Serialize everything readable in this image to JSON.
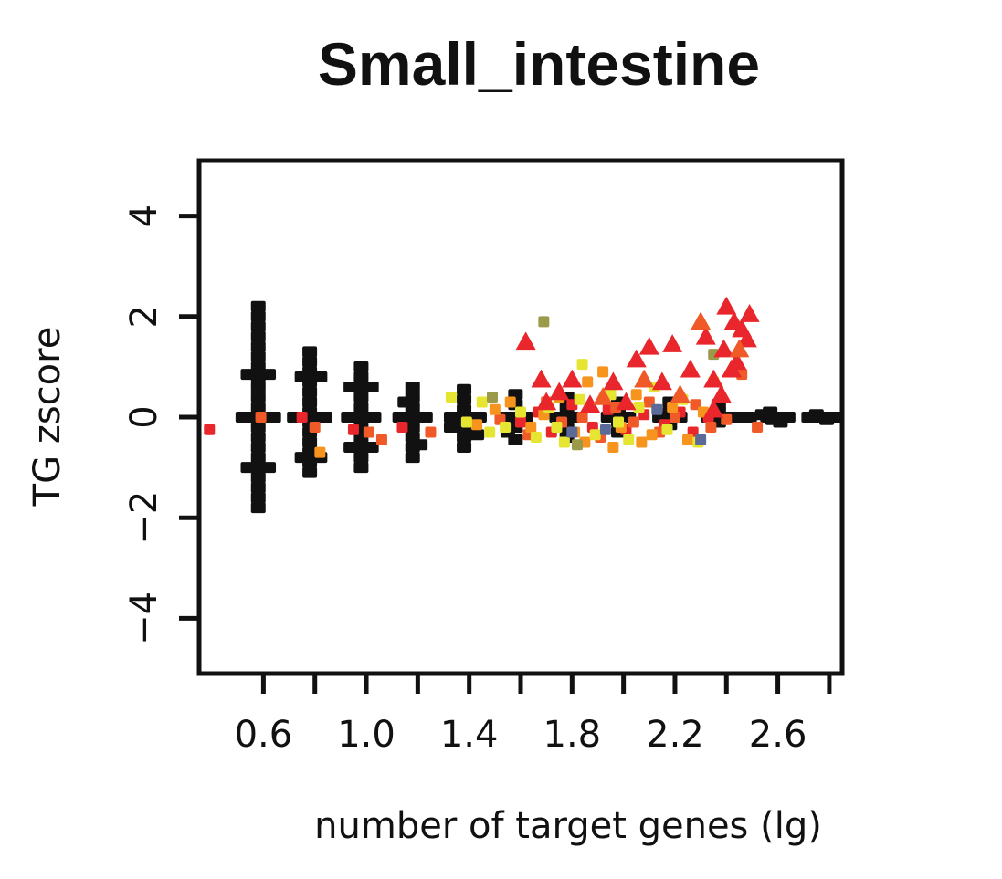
{
  "chart_data": {
    "type": "scatter",
    "title": "Small_intestine",
    "xlabel": "number of target genes (lg)",
    "ylabel": "TG zscore",
    "xlim": [
      0.35,
      2.85
    ],
    "ylim": [
      -5.1,
      5.1
    ],
    "xticks": [
      0.6,
      0.8,
      1.0,
      1.2,
      1.4,
      1.6,
      1.8,
      2.0,
      2.2,
      2.4,
      2.6,
      2.8
    ],
    "xtick_labels": [
      "0.6",
      "",
      "1.0",
      "",
      "1.4",
      "",
      "1.8",
      "",
      "2.2",
      "",
      "2.6",
      ""
    ],
    "yticks": [
      -4,
      -2,
      0,
      2,
      4
    ],
    "ytick_labels": [
      "−4",
      "−2",
      "0",
      "2",
      "4"
    ],
    "grid": false,
    "legend": "none",
    "colors": {
      "background_points": "#111111",
      "red": "#e8262b",
      "orange_red": "#f05a28",
      "orange": "#f7941d",
      "yellow": "#e6e632",
      "olive": "#9a9a4a",
      "slate": "#5c6a9a"
    },
    "series": [
      {
        "color": "#111111",
        "marker": "square",
        "points": [
          [
            0.58,
            2.2
          ],
          [
            0.58,
            2.0
          ],
          [
            0.58,
            1.8
          ],
          [
            0.58,
            1.6
          ],
          [
            0.58,
            1.4
          ],
          [
            0.58,
            1.2
          ],
          [
            0.58,
            1.0
          ],
          [
            0.58,
            0.8
          ],
          [
            0.58,
            0.6
          ],
          [
            0.58,
            0.4
          ],
          [
            0.58,
            0.2
          ],
          [
            0.58,
            0.0
          ],
          [
            0.58,
            -0.2
          ],
          [
            0.58,
            -0.4
          ],
          [
            0.58,
            -0.6
          ],
          [
            0.58,
            -0.8
          ],
          [
            0.58,
            -1.0
          ],
          [
            0.58,
            -1.2
          ],
          [
            0.58,
            -1.4
          ],
          [
            0.58,
            -1.6
          ],
          [
            0.58,
            -1.8
          ],
          [
            0.52,
            0.0
          ],
          [
            0.55,
            0.0
          ],
          [
            0.61,
            0.0
          ],
          [
            0.64,
            0.0
          ],
          [
            0.54,
            0.85
          ],
          [
            0.62,
            0.85
          ],
          [
            0.54,
            -1.0
          ],
          [
            0.62,
            -1.0
          ],
          [
            0.78,
            1.3
          ],
          [
            0.78,
            1.1
          ],
          [
            0.78,
            0.9
          ],
          [
            0.78,
            0.7
          ],
          [
            0.78,
            0.5
          ],
          [
            0.78,
            0.3
          ],
          [
            0.78,
            0.1
          ],
          [
            0.78,
            -0.1
          ],
          [
            0.78,
            -0.3
          ],
          [
            0.78,
            -0.5
          ],
          [
            0.78,
            -0.7
          ],
          [
            0.78,
            -0.9
          ],
          [
            0.78,
            -1.1
          ],
          [
            0.72,
            0.0
          ],
          [
            0.75,
            0.0
          ],
          [
            0.81,
            0.0
          ],
          [
            0.84,
            0.0
          ],
          [
            0.75,
            0.8
          ],
          [
            0.82,
            0.8
          ],
          [
            0.75,
            -0.8
          ],
          [
            0.82,
            -0.8
          ],
          [
            0.98,
            1.0
          ],
          [
            0.98,
            0.8
          ],
          [
            0.98,
            0.6
          ],
          [
            0.98,
            0.4
          ],
          [
            0.98,
            0.2
          ],
          [
            0.98,
            0.0
          ],
          [
            0.98,
            -0.2
          ],
          [
            0.98,
            -0.4
          ],
          [
            0.98,
            -0.6
          ],
          [
            0.98,
            -0.8
          ],
          [
            0.98,
            -1.0
          ],
          [
            0.93,
            0.0
          ],
          [
            0.95,
            0.0
          ],
          [
            1.01,
            0.0
          ],
          [
            1.03,
            0.0
          ],
          [
            0.94,
            0.6
          ],
          [
            1.02,
            0.6
          ],
          [
            0.94,
            -0.6
          ],
          [
            1.02,
            -0.6
          ],
          [
            1.18,
            0.6
          ],
          [
            1.18,
            0.4
          ],
          [
            1.18,
            0.2
          ],
          [
            1.18,
            0.0
          ],
          [
            1.18,
            -0.2
          ],
          [
            1.18,
            -0.4
          ],
          [
            1.18,
            -0.6
          ],
          [
            1.18,
            -0.8
          ],
          [
            1.13,
            0.0
          ],
          [
            1.15,
            0.0
          ],
          [
            1.21,
            0.0
          ],
          [
            1.23,
            0.0
          ],
          [
            1.15,
            0.3
          ],
          [
            1.21,
            -0.55
          ],
          [
            1.38,
            0.55
          ],
          [
            1.38,
            0.35
          ],
          [
            1.38,
            0.15
          ],
          [
            1.38,
            0.0
          ],
          [
            1.38,
            -0.2
          ],
          [
            1.38,
            -0.4
          ],
          [
            1.38,
            -0.6
          ],
          [
            1.33,
            0.0
          ],
          [
            1.36,
            0.0
          ],
          [
            1.41,
            0.0
          ],
          [
            1.44,
            0.0
          ],
          [
            1.33,
            -0.2
          ],
          [
            1.43,
            -0.35
          ],
          [
            1.58,
            0.45
          ],
          [
            1.58,
            0.25
          ],
          [
            1.58,
            0.0
          ],
          [
            1.58,
            -0.2
          ],
          [
            1.58,
            -0.45
          ],
          [
            1.54,
            0.0
          ],
          [
            1.62,
            0.0
          ],
          [
            1.55,
            -0.3
          ],
          [
            1.78,
            0.4
          ],
          [
            1.78,
            0.2
          ],
          [
            1.78,
            0.0
          ],
          [
            1.78,
            -0.2
          ],
          [
            1.78,
            -0.4
          ],
          [
            1.74,
            0.0
          ],
          [
            1.82,
            0.0
          ],
          [
            1.98,
            0.3
          ],
          [
            1.98,
            0.1
          ],
          [
            1.98,
            0.0
          ],
          [
            1.98,
            -0.1
          ],
          [
            1.98,
            -0.3
          ],
          [
            1.94,
            0.0
          ],
          [
            2.02,
            0.0
          ],
          [
            2.18,
            0.3
          ],
          [
            2.18,
            0.1
          ],
          [
            2.18,
            0.0
          ],
          [
            2.18,
            -0.15
          ],
          [
            2.14,
            0.0
          ],
          [
            2.22,
            0.0
          ],
          [
            2.37,
            0.25
          ],
          [
            2.37,
            0.1
          ],
          [
            2.37,
            0.0
          ],
          [
            2.37,
            -0.1
          ],
          [
            2.33,
            0.0
          ],
          [
            2.41,
            0.0
          ],
          [
            2.45,
            0.0
          ],
          [
            2.49,
            0.0
          ],
          [
            2.54,
            0.05
          ],
          [
            2.56,
            0.0
          ],
          [
            2.58,
            -0.05
          ],
          [
            2.6,
            0.0
          ],
          [
            2.62,
            0.0
          ],
          [
            2.64,
            0.0
          ],
          [
            2.57,
            0.1
          ],
          [
            2.61,
            -0.1
          ],
          [
            2.72,
            0.0
          ],
          [
            2.74,
            0.0
          ],
          [
            2.76,
            0.0
          ],
          [
            2.78,
            0.0
          ],
          [
            2.8,
            0.0
          ],
          [
            2.82,
            0.0
          ],
          [
            2.75,
            0.05
          ],
          [
            2.79,
            -0.05
          ]
        ]
      },
      {
        "color": "#e8262b",
        "marker": "square",
        "points": [
          [
            0.39,
            -0.25
          ],
          [
            0.75,
            0.0
          ],
          [
            0.95,
            -0.25
          ],
          [
            1.14,
            -0.2
          ],
          [
            1.6,
            -0.1
          ],
          [
            1.67,
            0.1
          ],
          [
            1.72,
            -0.3
          ],
          [
            1.8,
            0.25
          ],
          [
            1.88,
            -0.2
          ],
          [
            1.94,
            0.15
          ],
          [
            2.01,
            -0.25
          ],
          [
            2.08,
            0.05
          ],
          [
            2.16,
            -0.15
          ],
          [
            2.22,
            0.1
          ],
          [
            2.27,
            -0.3
          ],
          [
            2.33,
            0.0
          ]
        ]
      },
      {
        "color": "#f05a28",
        "marker": "square",
        "points": [
          [
            0.59,
            0.0
          ],
          [
            0.8,
            -0.2
          ],
          [
            1.01,
            -0.3
          ],
          [
            1.06,
            -0.45
          ],
          [
            1.25,
            -0.3
          ],
          [
            1.52,
            -0.05
          ],
          [
            1.63,
            -0.35
          ],
          [
            1.7,
            0.3
          ],
          [
            1.76,
            -0.1
          ],
          [
            1.84,
            0.0
          ],
          [
            1.91,
            -0.4
          ],
          [
            1.97,
            0.2
          ],
          [
            2.04,
            -0.1
          ],
          [
            2.1,
            0.3
          ],
          [
            2.14,
            -0.3
          ],
          [
            2.2,
            0.0
          ],
          [
            2.28,
            0.25
          ],
          [
            2.34,
            -0.2
          ],
          [
            2.4,
            -0.05
          ],
          [
            2.52,
            -0.2
          ],
          [
            2.46,
            0.85
          ]
        ]
      },
      {
        "color": "#f7941d",
        "marker": "square",
        "points": [
          [
            0.82,
            -0.7
          ],
          [
            1.43,
            -0.15
          ],
          [
            1.5,
            0.15
          ],
          [
            1.56,
            0.3
          ],
          [
            1.64,
            -0.2
          ],
          [
            1.69,
            0.05
          ],
          [
            1.75,
            0.4
          ],
          [
            1.81,
            -0.3
          ],
          [
            1.86,
            0.7
          ],
          [
            1.92,
            0.9
          ],
          [
            1.99,
            -0.2
          ],
          [
            2.05,
            0.45
          ],
          [
            2.11,
            -0.35
          ],
          [
            2.19,
            0.2
          ],
          [
            2.25,
            -0.45
          ],
          [
            2.31,
            0.1
          ],
          [
            1.85,
            -0.5
          ],
          [
            2.07,
            -0.5
          ],
          [
            1.96,
            -0.6
          ]
        ]
      },
      {
        "color": "#e6e632",
        "marker": "square",
        "points": [
          [
            1.33,
            0.4
          ],
          [
            1.39,
            -0.1
          ],
          [
            1.45,
            0.3
          ],
          [
            1.48,
            -0.3
          ],
          [
            1.54,
            -0.2
          ],
          [
            1.6,
            0.1
          ],
          [
            1.66,
            -0.4
          ],
          [
            1.71,
            0.2
          ],
          [
            1.77,
            -0.5
          ],
          [
            1.83,
            0.35
          ],
          [
            1.89,
            -0.35
          ],
          [
            1.84,
            1.05
          ],
          [
            1.95,
            0.45
          ],
          [
            2.02,
            -0.45
          ],
          [
            2.06,
            0.2
          ],
          [
            2.12,
            0.6
          ],
          [
            2.17,
            -0.25
          ],
          [
            2.23,
            0.35
          ],
          [
            2.29,
            -0.5
          ],
          [
            2.35,
            0.7
          ],
          [
            1.74,
            -0.2
          ],
          [
            1.98,
            -0.1
          ]
        ]
      },
      {
        "color": "#9a9a4a",
        "marker": "square",
        "points": [
          [
            1.69,
            1.9
          ],
          [
            1.49,
            0.4
          ],
          [
            1.82,
            -0.55
          ],
          [
            2.35,
            1.25
          ]
        ]
      },
      {
        "color": "#5c6a9a",
        "marker": "square",
        "points": [
          [
            1.8,
            -0.3
          ],
          [
            2.13,
            0.15
          ],
          [
            2.3,
            -0.45
          ],
          [
            1.93,
            -0.25
          ]
        ]
      },
      {
        "color": "#e8262b",
        "marker": "triangle",
        "points": [
          [
            1.62,
            1.5
          ],
          [
            1.68,
            0.75
          ],
          [
            1.75,
            0.5
          ],
          [
            1.8,
            0.75
          ],
          [
            1.87,
            0.25
          ],
          [
            1.96,
            0.7
          ],
          [
            2.05,
            1.15
          ],
          [
            2.1,
            1.4
          ],
          [
            2.19,
            1.45
          ],
          [
            2.26,
            0.95
          ],
          [
            2.32,
            1.6
          ],
          [
            2.35,
            0.75
          ],
          [
            2.39,
            1.35
          ],
          [
            2.4,
            2.2
          ],
          [
            2.43,
            1.9
          ],
          [
            2.46,
            1.75
          ],
          [
            2.49,
            2.05
          ],
          [
            2.44,
            1.1
          ],
          [
            2.38,
            0.45
          ],
          [
            2.15,
            0.7
          ],
          [
            2.01,
            0.3
          ],
          [
            1.7,
            0.3
          ],
          [
            2.35,
            0.15
          ],
          [
            2.42,
            0.95
          ],
          [
            2.48,
            1.55
          ]
        ]
      },
      {
        "color": "#f05a28",
        "marker": "triangle",
        "points": [
          [
            2.3,
            1.9
          ],
          [
            2.08,
            0.75
          ],
          [
            1.92,
            0.4
          ],
          [
            2.22,
            0.45
          ],
          [
            2.45,
            1.35
          ]
        ]
      }
    ]
  }
}
